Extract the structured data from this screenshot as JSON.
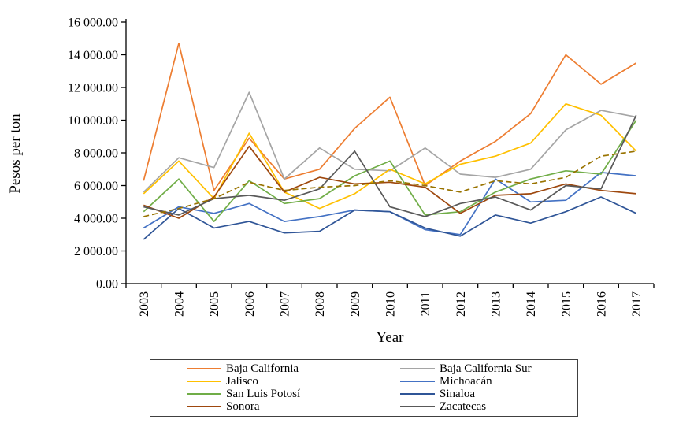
{
  "chart_data": {
    "type": "line",
    "title": "",
    "xlabel": "Year",
    "ylabel": "Pesos per ton",
    "ylim": [
      0,
      16000
    ],
    "y_tick_step": 2000,
    "y_tick_format": "thousands-space-two-decimals",
    "grid": false,
    "legend_position": "bottom-boxed-two-columns",
    "x": [
      "2003",
      "2004",
      "2005",
      "2006",
      "2007",
      "2008",
      "2009",
      "2010",
      "2011",
      "2012",
      "2013",
      "2014",
      "2015",
      "2016",
      "2017"
    ],
    "series": [
      {
        "name": "Baja California",
        "color": "#ED7D31",
        "dashed": false,
        "in_legend": true,
        "values": [
          6300,
          14700,
          5700,
          8900,
          6400,
          7000,
          9500,
          11400,
          6000,
          7500,
          8700,
          10400,
          14000,
          12200,
          13500
        ]
      },
      {
        "name": "Baja California Sur",
        "color": "#A5A5A5",
        "dashed": false,
        "in_legend": true,
        "values": [
          5600,
          7700,
          7100,
          11700,
          6400,
          8300,
          7000,
          6900,
          8300,
          6700,
          6500,
          7000,
          9400,
          10600,
          10200
        ]
      },
      {
        "name": "Jalisco",
        "color": "#FFC000",
        "dashed": false,
        "in_legend": true,
        "values": [
          5500,
          7500,
          5200,
          9200,
          5600,
          4600,
          5500,
          7000,
          6100,
          7300,
          7800,
          8600,
          11000,
          10300,
          8100
        ]
      },
      {
        "name": "Michoacán",
        "color": "#4472C4",
        "dashed": false,
        "in_legend": true,
        "values": [
          3400,
          4700,
          4300,
          4900,
          3800,
          4100,
          4500,
          4400,
          3300,
          3000,
          6400,
          5000,
          5100,
          6800,
          6600
        ]
      },
      {
        "name": "San Luis Potosí",
        "color": "#70AD47",
        "dashed": false,
        "in_legend": true,
        "values": [
          4400,
          6400,
          3800,
          6300,
          4900,
          5200,
          6600,
          7500,
          4200,
          4400,
          5600,
          6400,
          6900,
          6700,
          10000
        ]
      },
      {
        "name": "Sinaloa",
        "color": "#2F5597",
        "dashed": false,
        "in_legend": true,
        "values": [
          2700,
          4600,
          3400,
          3800,
          3100,
          3200,
          4500,
          4400,
          3400,
          2900,
          4200,
          3700,
          4400,
          5300,
          4300
        ]
      },
      {
        "name": "Sonora",
        "color": "#9E480E",
        "dashed": false,
        "in_legend": true,
        "values": [
          4800,
          4000,
          5300,
          8400,
          5600,
          6500,
          6100,
          6200,
          5900,
          4300,
          5400,
          5500,
          6100,
          5700,
          5500
        ]
      },
      {
        "name": "Zacatecas",
        "color": "#595959",
        "dashed": false,
        "in_legend": true,
        "values": [
          4700,
          4200,
          5200,
          5400,
          5100,
          5800,
          8100,
          4700,
          4100,
          4900,
          5300,
          4500,
          6000,
          5800,
          10300
        ]
      },
      {
        "name": "(unlabeled dashed series)",
        "color": "#997300",
        "dashed": true,
        "in_legend": false,
        "values": [
          4100,
          4600,
          5200,
          6200,
          5700,
          5900,
          6000,
          6300,
          6000,
          5600,
          6300,
          6100,
          6500,
          7800,
          8100
        ]
      }
    ],
    "legend_order": [
      "Baja California",
      "Jalisco",
      "San Luis Potosí",
      "Sonora",
      "Baja California Sur",
      "Michoacán",
      "Sinaloa",
      "Zacatecas"
    ]
  },
  "colors": {
    "axis": "#000000",
    "legend_border": "#404040",
    "background": "#ffffff"
  }
}
